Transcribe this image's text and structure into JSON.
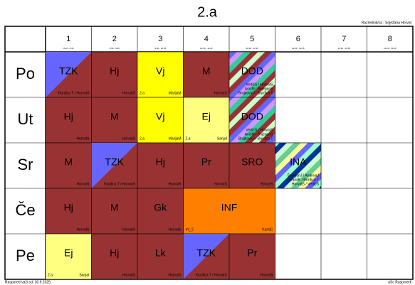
{
  "header": {
    "title": "2.a",
    "class_teacher": "Razrednik/ca : Snježana Horvat"
  },
  "footer": {
    "valid_from": "Raspored važi od: 30.9.2025.",
    "software": "aSc Rasporedi"
  },
  "periods": [
    {
      "number": "1",
      "time": "8:00 - 8:45"
    },
    {
      "number": "2",
      "time": "8:50 - 9:35"
    },
    {
      "number": "3",
      "time": "9:50 - 10:35"
    },
    {
      "number": "4",
      "time": "10:40 - 11:25"
    },
    {
      "number": "5",
      "time": "11:30 - 12:15"
    },
    {
      "number": "6",
      "time": "12:20 - 13:05"
    },
    {
      "number": "7",
      "time": "13:10 - 13:55"
    },
    {
      "number": "8",
      "time": "14:00 - 14:45"
    }
  ],
  "days": [
    {
      "name": "Po",
      "lessons": [
        {
          "col": 1,
          "span": 1,
          "subject": "TZK",
          "teachers": [
            "Đurđica T / HorvatS"
          ],
          "pattern": "diagonal",
          "colors": [
            "#6666ff",
            "#993333"
          ]
        },
        {
          "col": 2,
          "span": 1,
          "subject": "Hj",
          "teachers": [
            "HorvatS"
          ],
          "pattern": "solid",
          "colors": [
            "#993333"
          ]
        },
        {
          "col": 3,
          "span": 1,
          "subject": "Vj",
          "group": "2.a",
          "teachers": [
            "MarijaM"
          ],
          "pattern": "solid",
          "colors": [
            "#ffff00"
          ]
        },
        {
          "col": 4,
          "span": 1,
          "subject": "M",
          "teachers": [
            "HorvatS"
          ],
          "pattern": "solid",
          "colors": [
            "#993333"
          ]
        },
        {
          "col": 5,
          "span": 1,
          "subject": "DOD",
          "teachers": [
            "VertićS / HorvatS",
            "AnićM / ŠnjeganS",
            "BrajkovićJ / Đurđica T"
          ],
          "pattern": "stripes",
          "colors": [
            "#33cc99",
            "#993333",
            "#ccffcc",
            "#993333",
            "#6666ff",
            "#cc99ff"
          ]
        }
      ]
    },
    {
      "name": "Ut",
      "lessons": [
        {
          "col": 1,
          "span": 1,
          "subject": "Hj",
          "teachers": [
            "HorvatS"
          ],
          "pattern": "solid",
          "colors": [
            "#993333"
          ]
        },
        {
          "col": 2,
          "span": 1,
          "subject": "M",
          "teachers": [
            "HorvatS"
          ],
          "pattern": "solid",
          "colors": [
            "#993333"
          ]
        },
        {
          "col": 3,
          "span": 1,
          "subject": "Vj",
          "group": "2.a",
          "teachers": [
            "MarijaM"
          ],
          "pattern": "solid",
          "colors": [
            "#ffff00"
          ]
        },
        {
          "col": 4,
          "span": 1,
          "subject": "Ej",
          "group": "2.a",
          "teachers": [
            "SanjaI"
          ],
          "pattern": "solid",
          "colors": [
            "#ffff80"
          ]
        },
        {
          "col": 5,
          "span": 1,
          "subject": "DOD",
          "teachers": [
            "VertićS / HorvatS",
            "AnićM / ŠnjeganS",
            "BrajkovićJ / Đurđica T"
          ],
          "pattern": "stripes",
          "colors": [
            "#33cc99",
            "#993333",
            "#ccffcc",
            "#993333",
            "#6666ff",
            "#cc99ff"
          ]
        }
      ]
    },
    {
      "name": "Sr",
      "lessons": [
        {
          "col": 1,
          "span": 1,
          "subject": "M",
          "teachers": [
            "HorvatS"
          ],
          "pattern": "solid",
          "colors": [
            "#993333"
          ]
        },
        {
          "col": 2,
          "span": 1,
          "subject": "TZK",
          "teachers": [
            "Đurđica T / HorvatS"
          ],
          "pattern": "diagonal",
          "colors": [
            "#6666ff",
            "#993333"
          ]
        },
        {
          "col": 3,
          "span": 1,
          "subject": "Hj",
          "teachers": [
            "HorvatS"
          ],
          "pattern": "solid",
          "colors": [
            "#993333"
          ]
        },
        {
          "col": 4,
          "span": 1,
          "subject": "Pr",
          "teachers": [
            "HorvatS"
          ],
          "pattern": "solid",
          "colors": [
            "#993333"
          ]
        },
        {
          "col": 5,
          "span": 1,
          "subject": "SRO",
          "teachers": [
            "HorvatS"
          ],
          "pattern": "solid",
          "colors": [
            "#993333"
          ]
        },
        {
          "col": 6,
          "span": 1,
          "subject": "INA",
          "teachers": [
            "ŠnjeganJ / AndrejaJ",
            "ZoranaK / Đurđica T",
            "HorvatS / VertićS"
          ],
          "pattern": "stripes",
          "colors": [
            "#003399",
            "#ccffcc",
            "#66cc99",
            "#ffff99",
            "#6666ff",
            "#99ffcc"
          ]
        }
      ]
    },
    {
      "name": "Če",
      "lessons": [
        {
          "col": 1,
          "span": 1,
          "subject": "Hj",
          "teachers": [
            "HorvatS"
          ],
          "pattern": "solid",
          "colors": [
            "#993333"
          ]
        },
        {
          "col": 2,
          "span": 1,
          "subject": "M",
          "teachers": [
            "HorvatS"
          ],
          "pattern": "solid",
          "colors": [
            "#993333"
          ]
        },
        {
          "col": 3,
          "span": 1,
          "subject": "Gk",
          "teachers": [
            "HorvatS"
          ],
          "pattern": "solid",
          "colors": [
            "#993333"
          ]
        },
        {
          "col": 4,
          "span": 2,
          "subject": "INF",
          "group": "Inf_2",
          "teachers": [
            "KarlaC"
          ],
          "pattern": "solid",
          "colors": [
            "#ff8000"
          ]
        }
      ]
    },
    {
      "name": "Pe",
      "lessons": [
        {
          "col": 1,
          "span": 1,
          "subject": "Ej",
          "group": "2.a",
          "teachers": [
            "SanjaI"
          ],
          "pattern": "solid",
          "colors": [
            "#ffff80"
          ]
        },
        {
          "col": 2,
          "span": 1,
          "subject": "Hj",
          "teachers": [
            "HorvatS"
          ],
          "pattern": "solid",
          "colors": [
            "#993333"
          ]
        },
        {
          "col": 3,
          "span": 1,
          "subject": "Lk",
          "teachers": [
            "HorvatS"
          ],
          "pattern": "solid",
          "colors": [
            "#993333"
          ]
        },
        {
          "col": 4,
          "span": 1,
          "subject": "TZK",
          "teachers": [
            "Đurđica T / HorvatS"
          ],
          "pattern": "diagonal",
          "colors": [
            "#6666ff",
            "#993333"
          ]
        },
        {
          "col": 5,
          "span": 1,
          "subject": "Pr",
          "teachers": [
            "HorvatS"
          ],
          "pattern": "solid",
          "colors": [
            "#993333"
          ]
        }
      ]
    }
  ]
}
